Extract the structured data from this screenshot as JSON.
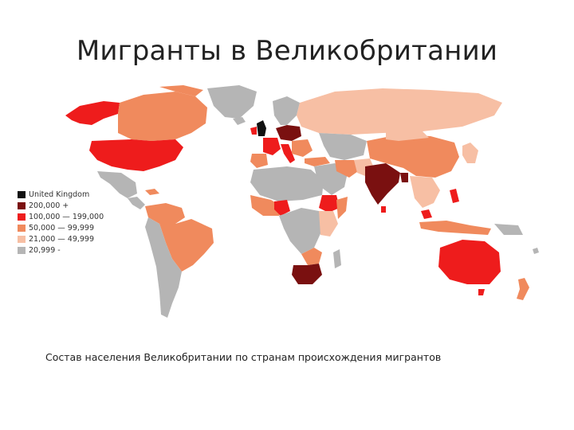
{
  "slide": {
    "title": "Мигранты в Великобритании",
    "caption": "Состав населения Великобритании по странам происхождения мигрантов"
  },
  "legend": {
    "items": [
      {
        "label": "United Kingdom",
        "color": "#111111"
      },
      {
        "label": "200,000 +",
        "color": "#7a1010"
      },
      {
        "label": "100,000 — 199,000",
        "color": "#ee1c1c"
      },
      {
        "label": "50,000 — 99,999",
        "color": "#f08a5d"
      },
      {
        "label": "21,000 — 49,999",
        "color": "#f7bfa4"
      },
      {
        "label": "20,999 -",
        "color": "#b5b5b5"
      }
    ]
  },
  "colors": {
    "uk": "#111111",
    "tier_200k_plus": "#7a1010",
    "tier_100k_199k": "#ee1c1c",
    "tier_50k_99k": "#f08a5d",
    "tier_21k_49k": "#f7bfa4",
    "tier_below_21k": "#b5b5b5"
  }
}
